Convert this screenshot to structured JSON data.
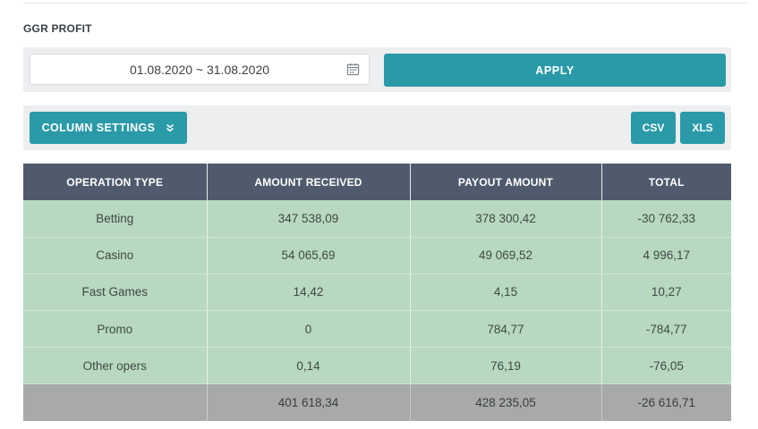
{
  "page": {
    "title": "GGR PROFIT"
  },
  "filters": {
    "date_range": "01.08.2020 ~ 31.08.2020",
    "date_icon": "calendar-icon",
    "apply_label": "APPLY"
  },
  "toolbar": {
    "column_settings_label": "COLUMN SETTINGS",
    "column_settings_icon": "double-chevron-down-icon",
    "csv_label": "CSV",
    "xls_label": "XLS"
  },
  "table": {
    "headers": [
      "OPERATION TYPE",
      "AMOUNT RECEIVED",
      "PAYOUT AMOUNT",
      "TOTAL"
    ],
    "rows": [
      [
        "Betting",
        "347 538,09",
        "378 300,42",
        "-30 762,33"
      ],
      [
        "Casino",
        "54 065,69",
        "49 069,52",
        "4 996,17"
      ],
      [
        "Fast Games",
        "14,42",
        "4,15",
        "10,27"
      ],
      [
        "Promo",
        "0",
        "784,77",
        "-784,77"
      ],
      [
        "Other opers",
        "0,14",
        "76,19",
        "-76,05"
      ]
    ],
    "totals": [
      "",
      "401 618,34",
      "428 235,05",
      "-26 616,71"
    ]
  },
  "colors": {
    "accent": "#2a9aa8",
    "header_bg": "#4f5b6d",
    "row_bg": "#b8d8bf",
    "total_bg": "#a7a9aa"
  }
}
